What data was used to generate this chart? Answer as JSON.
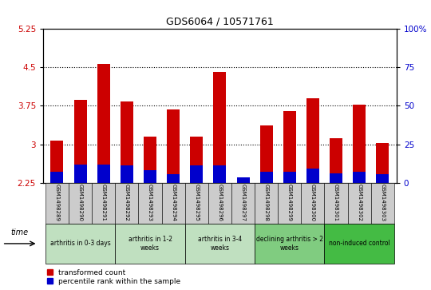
{
  "title": "GDS6064 / 10571761",
  "samples": [
    "GSM1498289",
    "GSM1498290",
    "GSM1498291",
    "GSM1498292",
    "GSM1498293",
    "GSM1498294",
    "GSM1498295",
    "GSM1498296",
    "GSM1498297",
    "GSM1498298",
    "GSM1498299",
    "GSM1498300",
    "GSM1498301",
    "GSM1498302",
    "GSM1498303"
  ],
  "red_values": [
    3.07,
    3.87,
    4.57,
    3.84,
    3.15,
    3.68,
    3.15,
    4.42,
    2.32,
    3.37,
    3.65,
    3.9,
    3.12,
    3.78,
    3.02
  ],
  "blue_values": [
    2.42,
    2.56,
    2.57,
    2.55,
    2.45,
    2.38,
    2.55,
    2.55,
    2.32,
    2.42,
    2.42,
    2.48,
    2.4,
    2.42,
    2.38
  ],
  "ymin": 2.25,
  "ymax": 5.25,
  "yticks_left": [
    2.25,
    3.0,
    3.75,
    4.5,
    5.25
  ],
  "yticks_right": [
    0,
    25,
    50,
    75,
    100
  ],
  "groups": [
    {
      "label": "arthritis in 0-3 days",
      "start": 0,
      "end": 3
    },
    {
      "label": "arthritis in 1-2\nweeks",
      "start": 3,
      "end": 6
    },
    {
      "label": "arthritis in 3-4\nweeks",
      "start": 6,
      "end": 9
    },
    {
      "label": "declining arthritis > 2\nweeks",
      "start": 9,
      "end": 12
    },
    {
      "label": "non-induced control",
      "start": 12,
      "end": 15
    }
  ],
  "group_colors": [
    "#c0e0c0",
    "#c0e0c0",
    "#c0e0c0",
    "#80cc80",
    "#44bb44"
  ],
  "legend_labels": [
    "transformed count",
    "percentile rank within the sample"
  ],
  "legend_colors": [
    "#cc0000",
    "#0000cc"
  ],
  "bar_color": "#cc0000",
  "blue_color": "#0000cc",
  "bg_color": "#cccccc",
  "left_tick_color": "#cc0000",
  "right_tick_color": "#0000cc",
  "time_label": "time"
}
